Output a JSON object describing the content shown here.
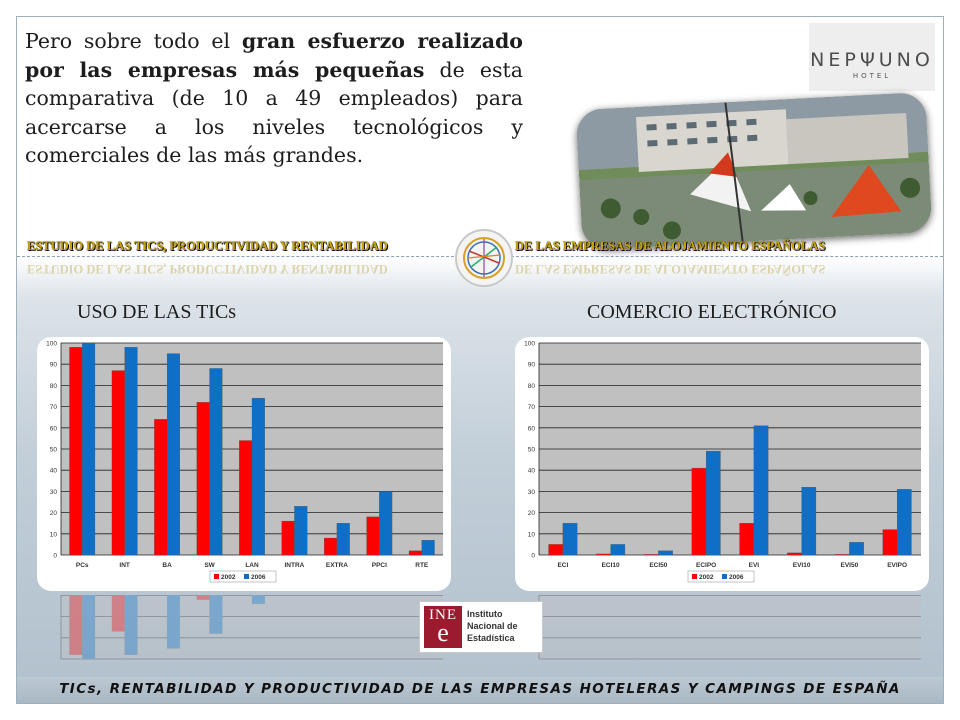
{
  "intro": {
    "part1": "Pero sobre todo el ",
    "bold": "gran esfuerzo realizado por las empresas más pequeñas",
    "part2": " de esta comparativa (de 10 a 49 empleados) para acercarse a los niveles tecnológicos y comerciales de las más grandes."
  },
  "header": {
    "banner_left": "ESTUDIO DE LAS TICS, PRODUCTIVIDAD Y RENTABILIDAD",
    "banner_right": "DE LAS EMPRESAS  DE ALOJAMIENTO ESPAÑOLAS"
  },
  "logos": {
    "neptuno_word": "NEPΨUNO",
    "neptuno_sub": "HOTEL",
    "ine_letters": "INE",
    "ine_e": "e",
    "ine_name": "Instituto Nacional de Estadística"
  },
  "footer": {
    "text": "TICs, RENTABILIDAD Y PRODUCTIVIDAD  DE LAS EMPRESAS HOTELERAS Y CAMPINGS DE ESPAÑA"
  },
  "colors": {
    "series_2002": "#ff0000",
    "series_2006": "#0f6fc6",
    "plot_bg": "#c0c0c0",
    "banner_gold": "#c9a400"
  },
  "chart_data": [
    {
      "type": "bar",
      "title": "USO DE LAS TICs",
      "categories": [
        "PCs",
        "INT",
        "BA",
        "SW",
        "LAN",
        "INTRA",
        "EXTRA",
        "PPCI",
        "RTE"
      ],
      "series": [
        {
          "name": "2002",
          "values": [
            98,
            87,
            64,
            72,
            54,
            16,
            8,
            18,
            2
          ]
        },
        {
          "name": "2006",
          "values": [
            100,
            98,
            95,
            88,
            74,
            23,
            15,
            30,
            7
          ]
        }
      ],
      "ylim": [
        0,
        100
      ],
      "yticks": [
        0,
        10,
        20,
        30,
        40,
        50,
        60,
        70,
        80,
        90,
        100
      ],
      "grid": true,
      "legend": "bottom"
    },
    {
      "type": "bar",
      "title": "COMERCIO ELECTRÓNICO",
      "categories": [
        "ECI",
        "ECI10",
        "ECI50",
        "ECIPO",
        "EVI",
        "EVI10",
        "EVI50",
        "EVIPO"
      ],
      "series": [
        {
          "name": "2002",
          "values": [
            5,
            0.5,
            0.3,
            41,
            15,
            1,
            0.3,
            12
          ]
        },
        {
          "name": "2006",
          "values": [
            15,
            5,
            2,
            49,
            61,
            32,
            6,
            31
          ]
        }
      ],
      "ylim": [
        0,
        100
      ],
      "yticks": [
        0,
        10,
        20,
        30,
        40,
        50,
        60,
        70,
        80,
        90,
        100
      ],
      "grid": true,
      "legend": "bottom"
    }
  ]
}
